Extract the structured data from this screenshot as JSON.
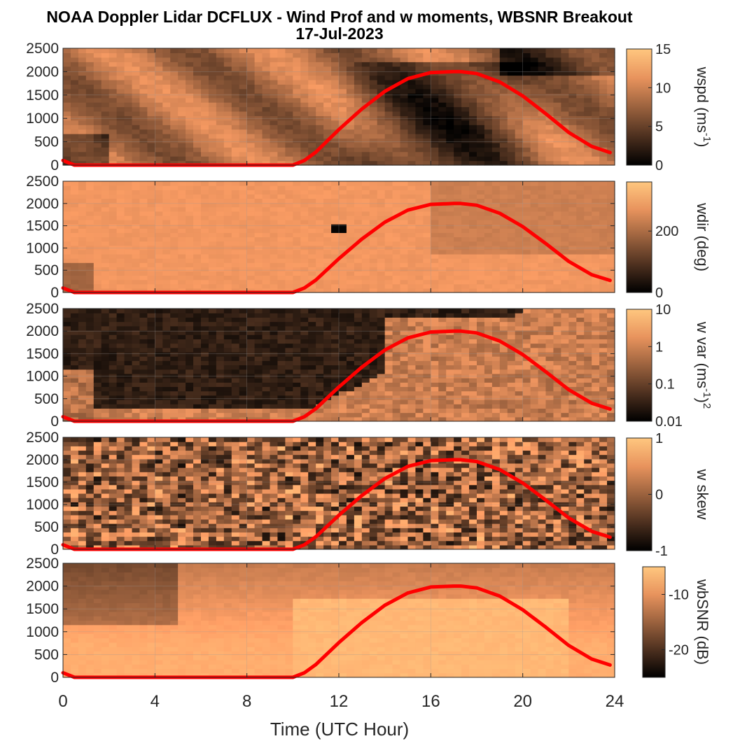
{
  "chart_data": {
    "type": "heatmap",
    "title": "NOAA Doppler Lidar DCFLUX - Wind Prof and w moments, WBSNR Breakout",
    "subtitle": "17-Jul-2023",
    "xlabel": "Time (UTC Hour)",
    "x_ticks": [
      "0",
      "4",
      "8",
      "12",
      "16",
      "20",
      "24"
    ],
    "xlim": [
      0,
      24
    ],
    "ylim": [
      0,
      2500
    ],
    "y_ticks": [
      "0",
      "500",
      "1000",
      "1500",
      "2000",
      "2500"
    ],
    "grid": true,
    "colormap": "copper",
    "overlay_line": {
      "color": "#ff0000",
      "x": [
        0,
        0.5,
        1,
        2,
        3,
        4,
        5,
        6,
        7,
        8,
        9,
        10,
        10.5,
        11,
        12,
        13,
        14,
        15,
        16,
        17,
        17.3,
        18,
        19,
        20,
        21,
        22,
        23,
        23.8
      ],
      "y": [
        100,
        0,
        0,
        0,
        0,
        0,
        0,
        0,
        0,
        0,
        0,
        0,
        100,
        280,
        760,
        1200,
        1580,
        1850,
        1980,
        2000,
        2000,
        1960,
        1780,
        1480,
        1100,
        700,
        400,
        270
      ]
    },
    "panels": [
      {
        "colorbar_label_main": "wspd (ms",
        "colorbar_label_sup": "-1",
        "colorbar_label_end": ")",
        "clim": [
          0,
          15
        ],
        "colorbar_ticks": [
          "0",
          "5",
          "10",
          "15"
        ]
      },
      {
        "colorbar_label_main": "wdir (deg)",
        "colorbar_label_sup": "",
        "colorbar_label_end": "",
        "clim": [
          0,
          360
        ],
        "colorbar_ticks": [
          "0",
          "200"
        ]
      },
      {
        "colorbar_label_main": "w var (ms",
        "colorbar_label_sup": "-1",
        "colorbar_label_end": ")",
        "colorbar_label_sup2": "2",
        "clim": [
          0.01,
          10
        ],
        "scale": "log",
        "colorbar_ticks": [
          "0.01",
          "0.1",
          "1",
          "10"
        ]
      },
      {
        "colorbar_label_main": "w skew",
        "colorbar_label_sup": "",
        "colorbar_label_end": "",
        "clim": [
          -1,
          1
        ],
        "colorbar_ticks": [
          "-1",
          "0",
          "1"
        ]
      },
      {
        "colorbar_label_main": "wbSNR (dB)",
        "colorbar_label_sup": "",
        "colorbar_label_end": "",
        "clim": [
          -25,
          -5
        ],
        "colorbar_ticks": [
          "-20",
          "-10"
        ]
      }
    ]
  }
}
